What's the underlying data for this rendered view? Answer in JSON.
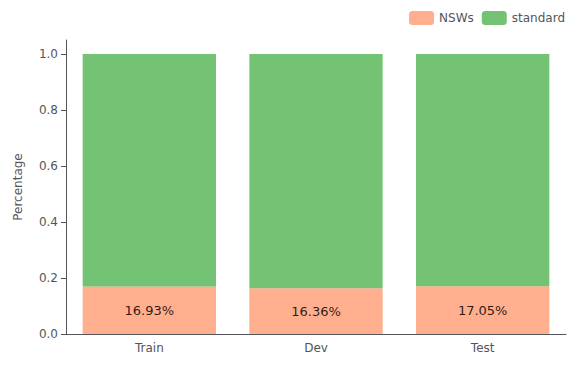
{
  "chart_data": {
    "type": "bar",
    "stacked": true,
    "categories": [
      "Train",
      "Dev",
      "Test"
    ],
    "series": [
      {
        "name": "NSWs",
        "color": "#FFA07A",
        "values": [
          0.1693,
          0.1636,
          0.1705
        ],
        "value_labels": [
          "16.93%",
          "16.36%",
          "17.05%"
        ]
      },
      {
        "name": "standard",
        "color": "#5CB85C",
        "values": [
          0.8307,
          0.8364,
          0.8295
        ]
      }
    ],
    "ylabel": "Percentage",
    "ylim": [
      0.0,
      1.05
    ],
    "yticks": [
      {
        "value": 0,
        "label": "0.0"
      },
      0.2,
      0.4,
      0.6,
      0.8,
      {
        "value": 1,
        "label": "1.0"
      }
    ],
    "grid": false,
    "legend": "upper right"
  }
}
